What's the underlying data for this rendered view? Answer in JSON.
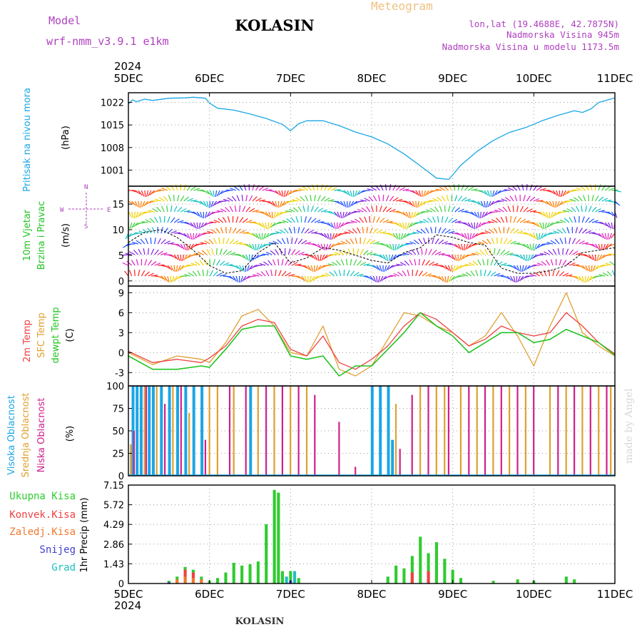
{
  "header": {
    "model_label": "Model",
    "model_name": "wrf-nmm_v3.9.1 e1km",
    "station": "KOLASIN",
    "meteogram_label": "Meteogram",
    "coords": "lon,lat (19.4688E, 42.7875N)",
    "elevation": "Nadmorska Visina 945m",
    "model_elevation": "Nadmorska Visina u modelu 1173.5m",
    "year_top": "2024",
    "year_bottom": "2024",
    "footer_station": "KOLASIN",
    "watermark": "made by Angel"
  },
  "colors": {
    "pressure": "#1aa6e6",
    "wind_label": "#22c422",
    "temp2m": "#f04040",
    "sfc_temp": "#e0a030",
    "dewpt": "#22c422",
    "high_cloud": "#1aa6e6",
    "mid_cloud": "#e0a030",
    "low_cloud": "#d0208a",
    "total_rain": "#2ecc2e",
    "conv_rain": "#f04040",
    "frozen_rain": "#f07830",
    "snow": "#4040d0",
    "hail": "#20c0c0",
    "header_purple": "#b040c0",
    "header_orange": "#f0c080",
    "watermark": "#d8d8d8"
  },
  "chart_data": [
    {
      "type": "line",
      "panel": "pressure",
      "ylabel_lines": [
        "Pritisak na nivou mora",
        "(hPa)"
      ],
      "x_ticks": [
        "5DEC",
        "6DEC",
        "7DEC",
        "8DEC",
        "9DEC",
        "10DEC",
        "11DEC"
      ],
      "x_range_days": [
        0,
        6
      ],
      "y_ticks": [
        1001,
        1008,
        1015,
        1022
      ],
      "ylim": [
        996,
        1025
      ],
      "series": [
        {
          "x": [
            0,
            0.05,
            0.1,
            0.2,
            0.3,
            0.5,
            0.7,
            0.8,
            0.95,
            1.0,
            1.1,
            1.3,
            1.5,
            1.7,
            1.9,
            2.0,
            2.1,
            2.2,
            2.4,
            2.6,
            2.8,
            3.0,
            3.2,
            3.4,
            3.6,
            3.8,
            3.95,
            4.0,
            4.1,
            4.3,
            4.5,
            4.7,
            4.9,
            5.1,
            5.3,
            5.5,
            5.6,
            5.7,
            5.8,
            6.0
          ],
          "values": [
            1021.5,
            1022.8,
            1022.2,
            1023.0,
            1022.6,
            1023.3,
            1023.4,
            1023.6,
            1023.3,
            1021.8,
            1020.2,
            1019.6,
            1018.4,
            1017.0,
            1015.2,
            1013.2,
            1015.4,
            1016.3,
            1016.3,
            1014.8,
            1012.8,
            1011.3,
            1009.1,
            1006.0,
            1002.3,
            998.5,
            998.1,
            999.5,
            1002.5,
            1006.8,
            1010.2,
            1012.7,
            1014.2,
            1016.3,
            1018.0,
            1019.4,
            1018.9,
            1019.9,
            1022.0,
            1023.4
          ]
        }
      ]
    },
    {
      "type": "line",
      "panel": "wind",
      "ylabel_lines": [
        "10m Vjetar",
        "Brzina i Pravac",
        "(m/s)"
      ],
      "compass_labels": [
        "N",
        "S",
        "W",
        "E"
      ],
      "y_ticks": [
        0,
        5,
        10,
        15
      ],
      "ylim": [
        -1,
        18.5
      ],
      "note": "shaded band of coloured wind barbs",
      "series": [
        {
          "name": "",
          "x": [
            0,
            0.2,
            0.4,
            0.6,
            0.8,
            1.0,
            1.2,
            1.4,
            1.6,
            1.8,
            2.0,
            2.2,
            2.4,
            2.6,
            2.8,
            3.0,
            3.2,
            3.4,
            3.6,
            3.8,
            4.0,
            4.2,
            4.4,
            4.6,
            4.8,
            5.0,
            5.2,
            5.4,
            5.6,
            5.8,
            6.0
          ],
          "values": [
            7.5,
            9.5,
            10.0,
            8.5,
            6.0,
            3.0,
            1.5,
            2.0,
            5.5,
            7.5,
            3.5,
            4.5,
            6.5,
            6.0,
            5.0,
            4.0,
            3.5,
            5.5,
            6.5,
            9.0,
            8.5,
            7.5,
            7.0,
            2.5,
            1.5,
            1.5,
            2.0,
            3.0,
            5.5,
            6.0,
            6.5
          ]
        }
      ]
    },
    {
      "type": "line",
      "panel": "temperature",
      "ylabel_lines": [
        "2m Temp",
        "SFC Temp",
        "dewpt Temp",
        "(C)"
      ],
      "y_ticks": [
        -3,
        0,
        3,
        6,
        9
      ],
      "ylim": [
        -5,
        10
      ],
      "series": [
        {
          "name": "2m Temp",
          "x": [
            0,
            0.3,
            0.6,
            0.9,
            1.0,
            1.2,
            1.4,
            1.6,
            1.8,
            2.0,
            2.2,
            2.4,
            2.6,
            2.8,
            3.0,
            3.2,
            3.4,
            3.6,
            3.8,
            4.0,
            4.2,
            4.4,
            4.6,
            4.8,
            5.0,
            5.2,
            5.4,
            5.6,
            5.8,
            6.0
          ],
          "values": [
            0.2,
            -1.5,
            -1.0,
            -1.5,
            -0.8,
            1.0,
            4.0,
            5.0,
            4.5,
            0.5,
            -0.5,
            2.5,
            -1.5,
            -2.5,
            -1.0,
            1.0,
            4.0,
            6.0,
            5.0,
            3.0,
            1.0,
            2.0,
            4.0,
            3.0,
            2.5,
            3.0,
            6.0,
            4.0,
            1.5,
            -0.2
          ]
        },
        {
          "name": "SFC Temp",
          "x": [
            0,
            0.3,
            0.6,
            0.9,
            1.0,
            1.2,
            1.4,
            1.6,
            1.8,
            2.0,
            2.2,
            2.4,
            2.6,
            2.8,
            3.0,
            3.2,
            3.4,
            3.6,
            3.8,
            4.0,
            4.2,
            4.4,
            4.6,
            4.8,
            5.0,
            5.2,
            5.4,
            5.6,
            5.8,
            6.0
          ],
          "values": [
            0.0,
            -1.8,
            -0.5,
            -1.0,
            -1.5,
            1.5,
            5.5,
            6.5,
            4.0,
            0.0,
            -0.5,
            4.0,
            -2.5,
            -3.5,
            -2.0,
            2.0,
            6.0,
            5.5,
            4.0,
            3.0,
            1.0,
            2.5,
            6.0,
            2.5,
            -2.0,
            4.0,
            9.0,
            3.0,
            1.0,
            -0.5
          ]
        },
        {
          "name": "dewpt Temp",
          "x": [
            0,
            0.3,
            0.6,
            0.9,
            1.0,
            1.2,
            1.4,
            1.6,
            1.8,
            2.0,
            2.2,
            2.4,
            2.6,
            2.8,
            3.0,
            3.2,
            3.4,
            3.6,
            3.8,
            4.0,
            4.2,
            4.4,
            4.6,
            4.8,
            5.0,
            5.2,
            5.4,
            5.6,
            5.8,
            6.0
          ],
          "values": [
            -0.5,
            -2.5,
            -2.5,
            -2.0,
            -2.2,
            0.5,
            3.5,
            4.0,
            4.0,
            -0.5,
            -1.0,
            -0.5,
            -3.5,
            -2.0,
            -2.0,
            0.5,
            3.0,
            6.0,
            4.0,
            2.5,
            0.0,
            1.5,
            3.0,
            3.0,
            1.5,
            2.0,
            3.5,
            2.5,
            1.5,
            -0.4
          ]
        }
      ]
    },
    {
      "type": "bar",
      "panel": "clouds",
      "ylabel_lines": [
        "Visoka Oblacnost",
        "Srednja Oblacnost",
        "Niska Oblacnost",
        "(%)"
      ],
      "y_ticks": [
        0,
        25,
        50,
        75,
        100
      ],
      "ylim": [
        0,
        100
      ],
      "series": [
        {
          "name": "Visoka Oblacnost",
          "x": [
            0.05,
            0.1,
            0.15,
            0.25,
            0.3,
            0.4,
            0.5,
            0.6,
            0.7,
            0.8,
            0.9,
            1.5,
            3.0,
            3.1,
            3.2,
            3.25
          ],
          "values": [
            100,
            100,
            100,
            100,
            100,
            100,
            100,
            100,
            100,
            100,
            100,
            100,
            100,
            100,
            100,
            40
          ]
        },
        {
          "name": "Srednja Oblacnost",
          "x": [
            0.03,
            0.2,
            0.35,
            0.55,
            0.75,
            1.0,
            1.1,
            1.3,
            1.6,
            1.8,
            2.0,
            2.2,
            3.3,
            3.6,
            3.8,
            3.9,
            4.1,
            4.3,
            4.5,
            4.7,
            4.9,
            5.2,
            5.4,
            5.6,
            5.8,
            5.95
          ],
          "values": [
            35,
            100,
            100,
            100,
            70,
            100,
            100,
            100,
            100,
            100,
            100,
            100,
            80,
            100,
            100,
            100,
            100,
            100,
            100,
            100,
            100,
            100,
            100,
            100,
            100,
            100
          ]
        },
        {
          "name": "Niska Oblacnost",
          "x": [
            0.07,
            0.22,
            0.45,
            0.65,
            0.95,
            1.25,
            1.45,
            1.7,
            1.9,
            2.1,
            2.3,
            2.6,
            2.8,
            3.35,
            3.5,
            3.7,
            3.95,
            4.2,
            4.4,
            4.6,
            4.8,
            5.0,
            5.3,
            5.5,
            5.7,
            5.9
          ],
          "values": [
            50,
            100,
            80,
            100,
            40,
            100,
            100,
            100,
            100,
            100,
            90,
            60,
            10,
            30,
            90,
            100,
            100,
            100,
            100,
            100,
            100,
            100,
            100,
            100,
            100,
            100
          ]
        }
      ]
    },
    {
      "type": "bar",
      "panel": "precipitation",
      "ylabel_lines": [
        "1hr Precip (mm)"
      ],
      "legend": [
        "Ukupna Kisa",
        "Konvek.Kisa",
        "Zaledj.Kisa",
        "Snijeg",
        "Grad"
      ],
      "y_ticks": [
        0,
        1.43,
        2.86,
        4.29,
        5.72,
        7.15
      ],
      "ylim": [
        0,
        7.15
      ],
      "series": [
        {
          "name": "Ukupna Kisa",
          "x": [
            0.5,
            0.6,
            0.7,
            0.8,
            0.9,
            1.0,
            1.1,
            1.2,
            1.3,
            1.4,
            1.5,
            1.6,
            1.7,
            1.8,
            1.85,
            1.9,
            2.0,
            2.1,
            3.2,
            3.3,
            3.4,
            3.5,
            3.6,
            3.7,
            3.8,
            3.9,
            4.0,
            4.1,
            4.5,
            4.8,
            5.0,
            5.4,
            5.5
          ],
          "values": [
            0.2,
            0.5,
            1.2,
            1.0,
            0.5,
            0.2,
            0.4,
            0.8,
            1.5,
            1.3,
            1.4,
            1.6,
            4.3,
            6.8,
            6.6,
            0.9,
            0.9,
            0.4,
            0.5,
            1.3,
            1.1,
            2.0,
            3.4,
            2.2,
            3.0,
            1.8,
            1.0,
            0.4,
            0.2,
            0.3,
            0.2,
            0.5,
            0.3
          ]
        },
        {
          "name": "Konvek.Kisa",
          "x": [
            0.7,
            0.8,
            3.5,
            3.7
          ],
          "values": [
            1.0,
            0.8,
            0.8,
            0.9
          ]
        },
        {
          "name": "Zaledj.Kisa",
          "x": [
            0.6,
            0.7,
            0.8,
            0.9
          ],
          "values": [
            0.3,
            0.5,
            0.4,
            0.3
          ]
        },
        {
          "name": "Snijeg",
          "x": [
            0.5,
            2.0
          ],
          "values": [
            0.1,
            0.2
          ]
        },
        {
          "name": "Grad",
          "x": [
            1.95,
            2.05
          ],
          "values": [
            0.5,
            0.9
          ]
        }
      ]
    }
  ]
}
